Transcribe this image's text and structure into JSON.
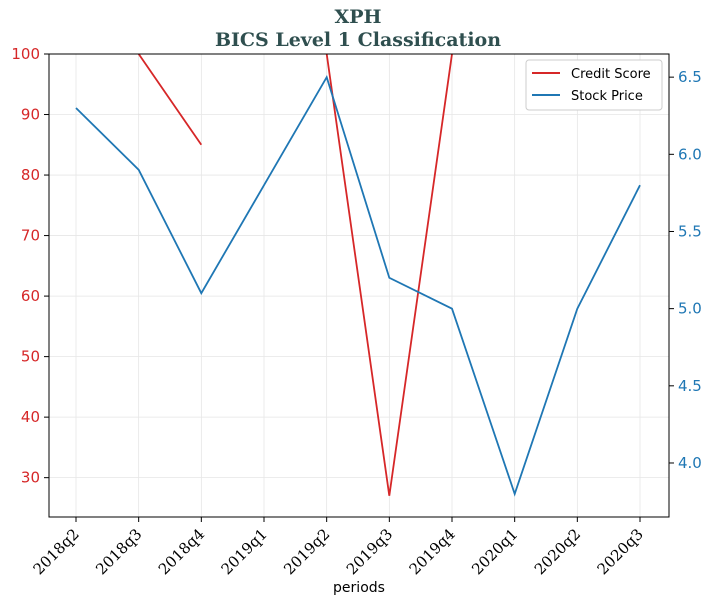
{
  "chart_data": {
    "type": "line",
    "title": "XPH",
    "subtitle": "BICS Level 1 Classification",
    "xlabel": "periods",
    "categories": [
      "2018q2",
      "2018q3",
      "2018q4",
      "2019q1",
      "2019q2",
      "2019q3",
      "2019q4",
      "2020q1",
      "2020q2",
      "2020q3"
    ],
    "series": [
      {
        "name": "Credit Score",
        "axis": "left",
        "color": "#d62728",
        "values": [
          null,
          100,
          85,
          null,
          100,
          27,
          100,
          null,
          null,
          null
        ]
      },
      {
        "name": "Stock Price",
        "axis": "right",
        "color": "#1f77b4",
        "values": [
          6.3,
          5.9,
          5.1,
          5.8,
          6.5,
          5.2,
          5.0,
          3.8,
          5.0,
          5.8
        ]
      }
    ],
    "y_left": {
      "ticks": [
        30,
        40,
        50,
        60,
        70,
        80,
        90,
        100
      ],
      "ylim": [
        23.5,
        100
      ],
      "color": "#d62728"
    },
    "y_right": {
      "ticks": [
        "4.0",
        "4.5",
        "5.0",
        "5.5",
        "6.0",
        "6.5"
      ],
      "ylim": [
        3.65,
        6.65
      ],
      "color": "#1f77b4"
    },
    "grid": true,
    "legend": "top-right"
  }
}
